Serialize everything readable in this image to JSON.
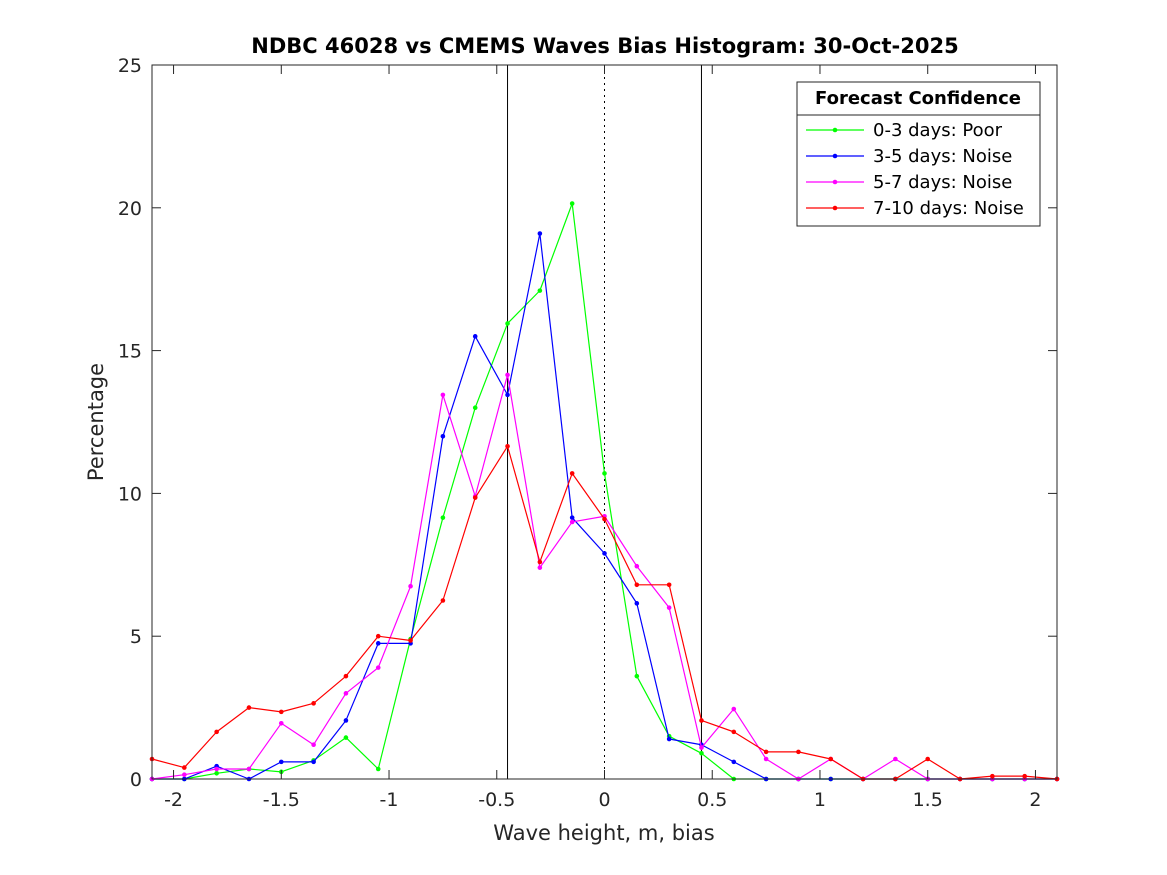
{
  "chart_data": {
    "type": "line",
    "title": "NDBC 46028 vs CMEMS Waves Bias Histogram: 30-Oct-2025",
    "xlabel": "Wave height, m, bias",
    "ylabel": "Percentage",
    "xlim": [
      -2.1,
      2.1
    ],
    "ylim": [
      0,
      25
    ],
    "xticks": [
      -2,
      -1.5,
      -1,
      -0.5,
      0,
      0.5,
      1,
      1.5,
      2
    ],
    "xtick_labels": [
      "-2",
      "-1.5",
      "-1",
      "-0.5",
      "0",
      "0.5",
      "1",
      "1.5",
      "2"
    ],
    "yticks": [
      0,
      5,
      10,
      15,
      20,
      25
    ],
    "ytick_labels": [
      "0",
      "5",
      "10",
      "15",
      "20",
      "25"
    ],
    "grid": false,
    "vertical_lines": [
      {
        "x": -0.45,
        "style": "solid"
      },
      {
        "x": 0,
        "style": "dotted"
      },
      {
        "x": 0.45,
        "style": "solid"
      }
    ],
    "x": [
      -2.1,
      -1.95,
      -1.8,
      -1.65,
      -1.5,
      -1.35,
      -1.2,
      -1.05,
      -0.9,
      -0.75,
      -0.6,
      -0.45,
      -0.3,
      -0.15,
      0,
      0.15,
      0.3,
      0.45,
      0.6,
      0.75,
      0.9,
      1.05,
      1.2,
      1.35,
      1.5,
      1.65,
      1.8,
      1.95,
      2.1
    ],
    "legend": {
      "title": "Forecast Confidence",
      "location": "top-right"
    },
    "series": [
      {
        "name": "0-3 days: Poor",
        "color": "#00ff00",
        "values": [
          0,
          0,
          0.2,
          0.35,
          0.25,
          0.65,
          1.45,
          0.35,
          4.9,
          9.15,
          13.0,
          15.95,
          17.1,
          20.15,
          10.7,
          3.6,
          1.5,
          0.9,
          0,
          0,
          0,
          0,
          0,
          0,
          0,
          0,
          0,
          0,
          0
        ]
      },
      {
        "name": "3-5 days: Noise",
        "color": "#0000ff",
        "values": [
          0,
          0,
          0.45,
          0,
          0.6,
          0.6,
          2.05,
          4.75,
          4.75,
          12.0,
          15.5,
          13.45,
          19.1,
          9.15,
          7.9,
          6.15,
          1.4,
          1.2,
          0.6,
          0,
          0,
          0,
          0,
          0,
          0,
          0,
          0,
          0,
          0
        ]
      },
      {
        "name": "5-7 days: Noise",
        "color": "#ff00ff",
        "values": [
          0,
          0.15,
          0.35,
          0.35,
          1.95,
          1.2,
          3.0,
          3.9,
          6.75,
          13.45,
          9.9,
          14.15,
          7.4,
          9.0,
          9.2,
          7.45,
          6.0,
          1.1,
          2.45,
          0.7,
          0,
          0.7,
          0,
          0.7,
          0,
          0,
          0,
          0,
          0
        ]
      },
      {
        "name": "7-10 days: Noise",
        "color": "#ff0000",
        "values": [
          0.7,
          0.4,
          1.65,
          2.5,
          2.35,
          2.65,
          3.6,
          5.0,
          4.85,
          6.25,
          9.85,
          11.65,
          7.6,
          10.7,
          9.1,
          6.8,
          6.8,
          2.05,
          1.65,
          0.95,
          0.95,
          0.7,
          0,
          0,
          0.7,
          0,
          0.1,
          0.1,
          0
        ]
      }
    ]
  }
}
